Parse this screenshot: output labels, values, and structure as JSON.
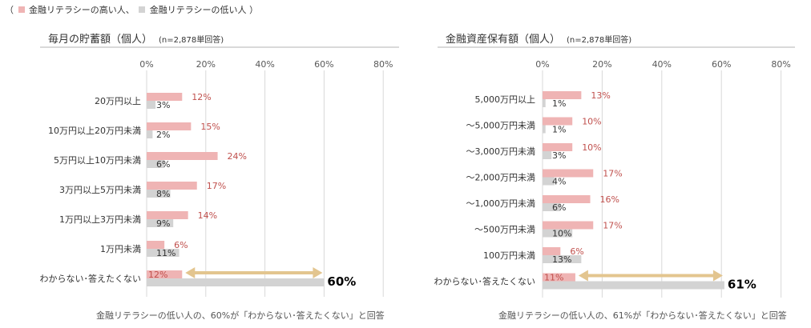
{
  "legend": {
    "open": "（",
    "high_label": "金融リテラシーの高い人、",
    "low_label": "金融リテラシーの低い人",
    "close": "）",
    "high_color": "#efb4b4",
    "low_color": "#d3d3d3"
  },
  "colors": {
    "high_label_text": "#c0504d",
    "low_label_text": "#333333",
    "arrow": "#e3c58f",
    "grid": "#d9d9d9"
  },
  "chart_data": [
    {
      "type": "bar",
      "orientation": "horizontal",
      "title": "毎月の貯蓄額（個人）",
      "note": "(n=2,878単回答)",
      "categories": [
        "20万円以上",
        "10万円以上20万円未満",
        "5万円以上10万円未満",
        "3万円以上5万円未満",
        "1万円以上3万円未満",
        "1万円未満",
        "わからない･答えたくない"
      ],
      "series": [
        {
          "name": "金融リテラシーの高い人",
          "values": [
            12,
            15,
            24,
            17,
            14,
            6,
            12
          ]
        },
        {
          "name": "金融リテラシーの低い人",
          "values": [
            3,
            2,
            6,
            8,
            9,
            11,
            60
          ]
        }
      ],
      "xlim": [
        0,
        80
      ],
      "ticks": [
        "0%",
        "20%",
        "40%",
        "60%",
        "80%"
      ],
      "highlight_value": "60%",
      "footnote": "金融リテラシーの低い人の、60%が「わからない･答えたくない」と回答",
      "grid": true
    },
    {
      "type": "bar",
      "orientation": "horizontal",
      "title": "金融資産保有額（個人）",
      "note": "(n=2,878単回答)",
      "categories": [
        "5,000万円以上",
        "～5,000万円未満",
        "～3,000万円未満",
        "～2,000万円未満",
        "～1,000万円未満",
        "～500万円未満",
        "100万円未満",
        "わからない･答えたくない"
      ],
      "series": [
        {
          "name": "金融リテラシーの高い人",
          "values": [
            13,
            10,
            10,
            17,
            16,
            17,
            6,
            11
          ]
        },
        {
          "name": "金融リテラシーの低い人",
          "values": [
            1,
            1,
            3,
            4,
            6,
            10,
            13,
            61
          ]
        }
      ],
      "xlim": [
        0,
        80
      ],
      "ticks": [
        "0%",
        "20%",
        "40%",
        "60%",
        "80%"
      ],
      "highlight_value": "61%",
      "footnote": "金融リテラシーの低い人の、61%が「わからない･答えたくない」と回答",
      "grid": true
    }
  ]
}
